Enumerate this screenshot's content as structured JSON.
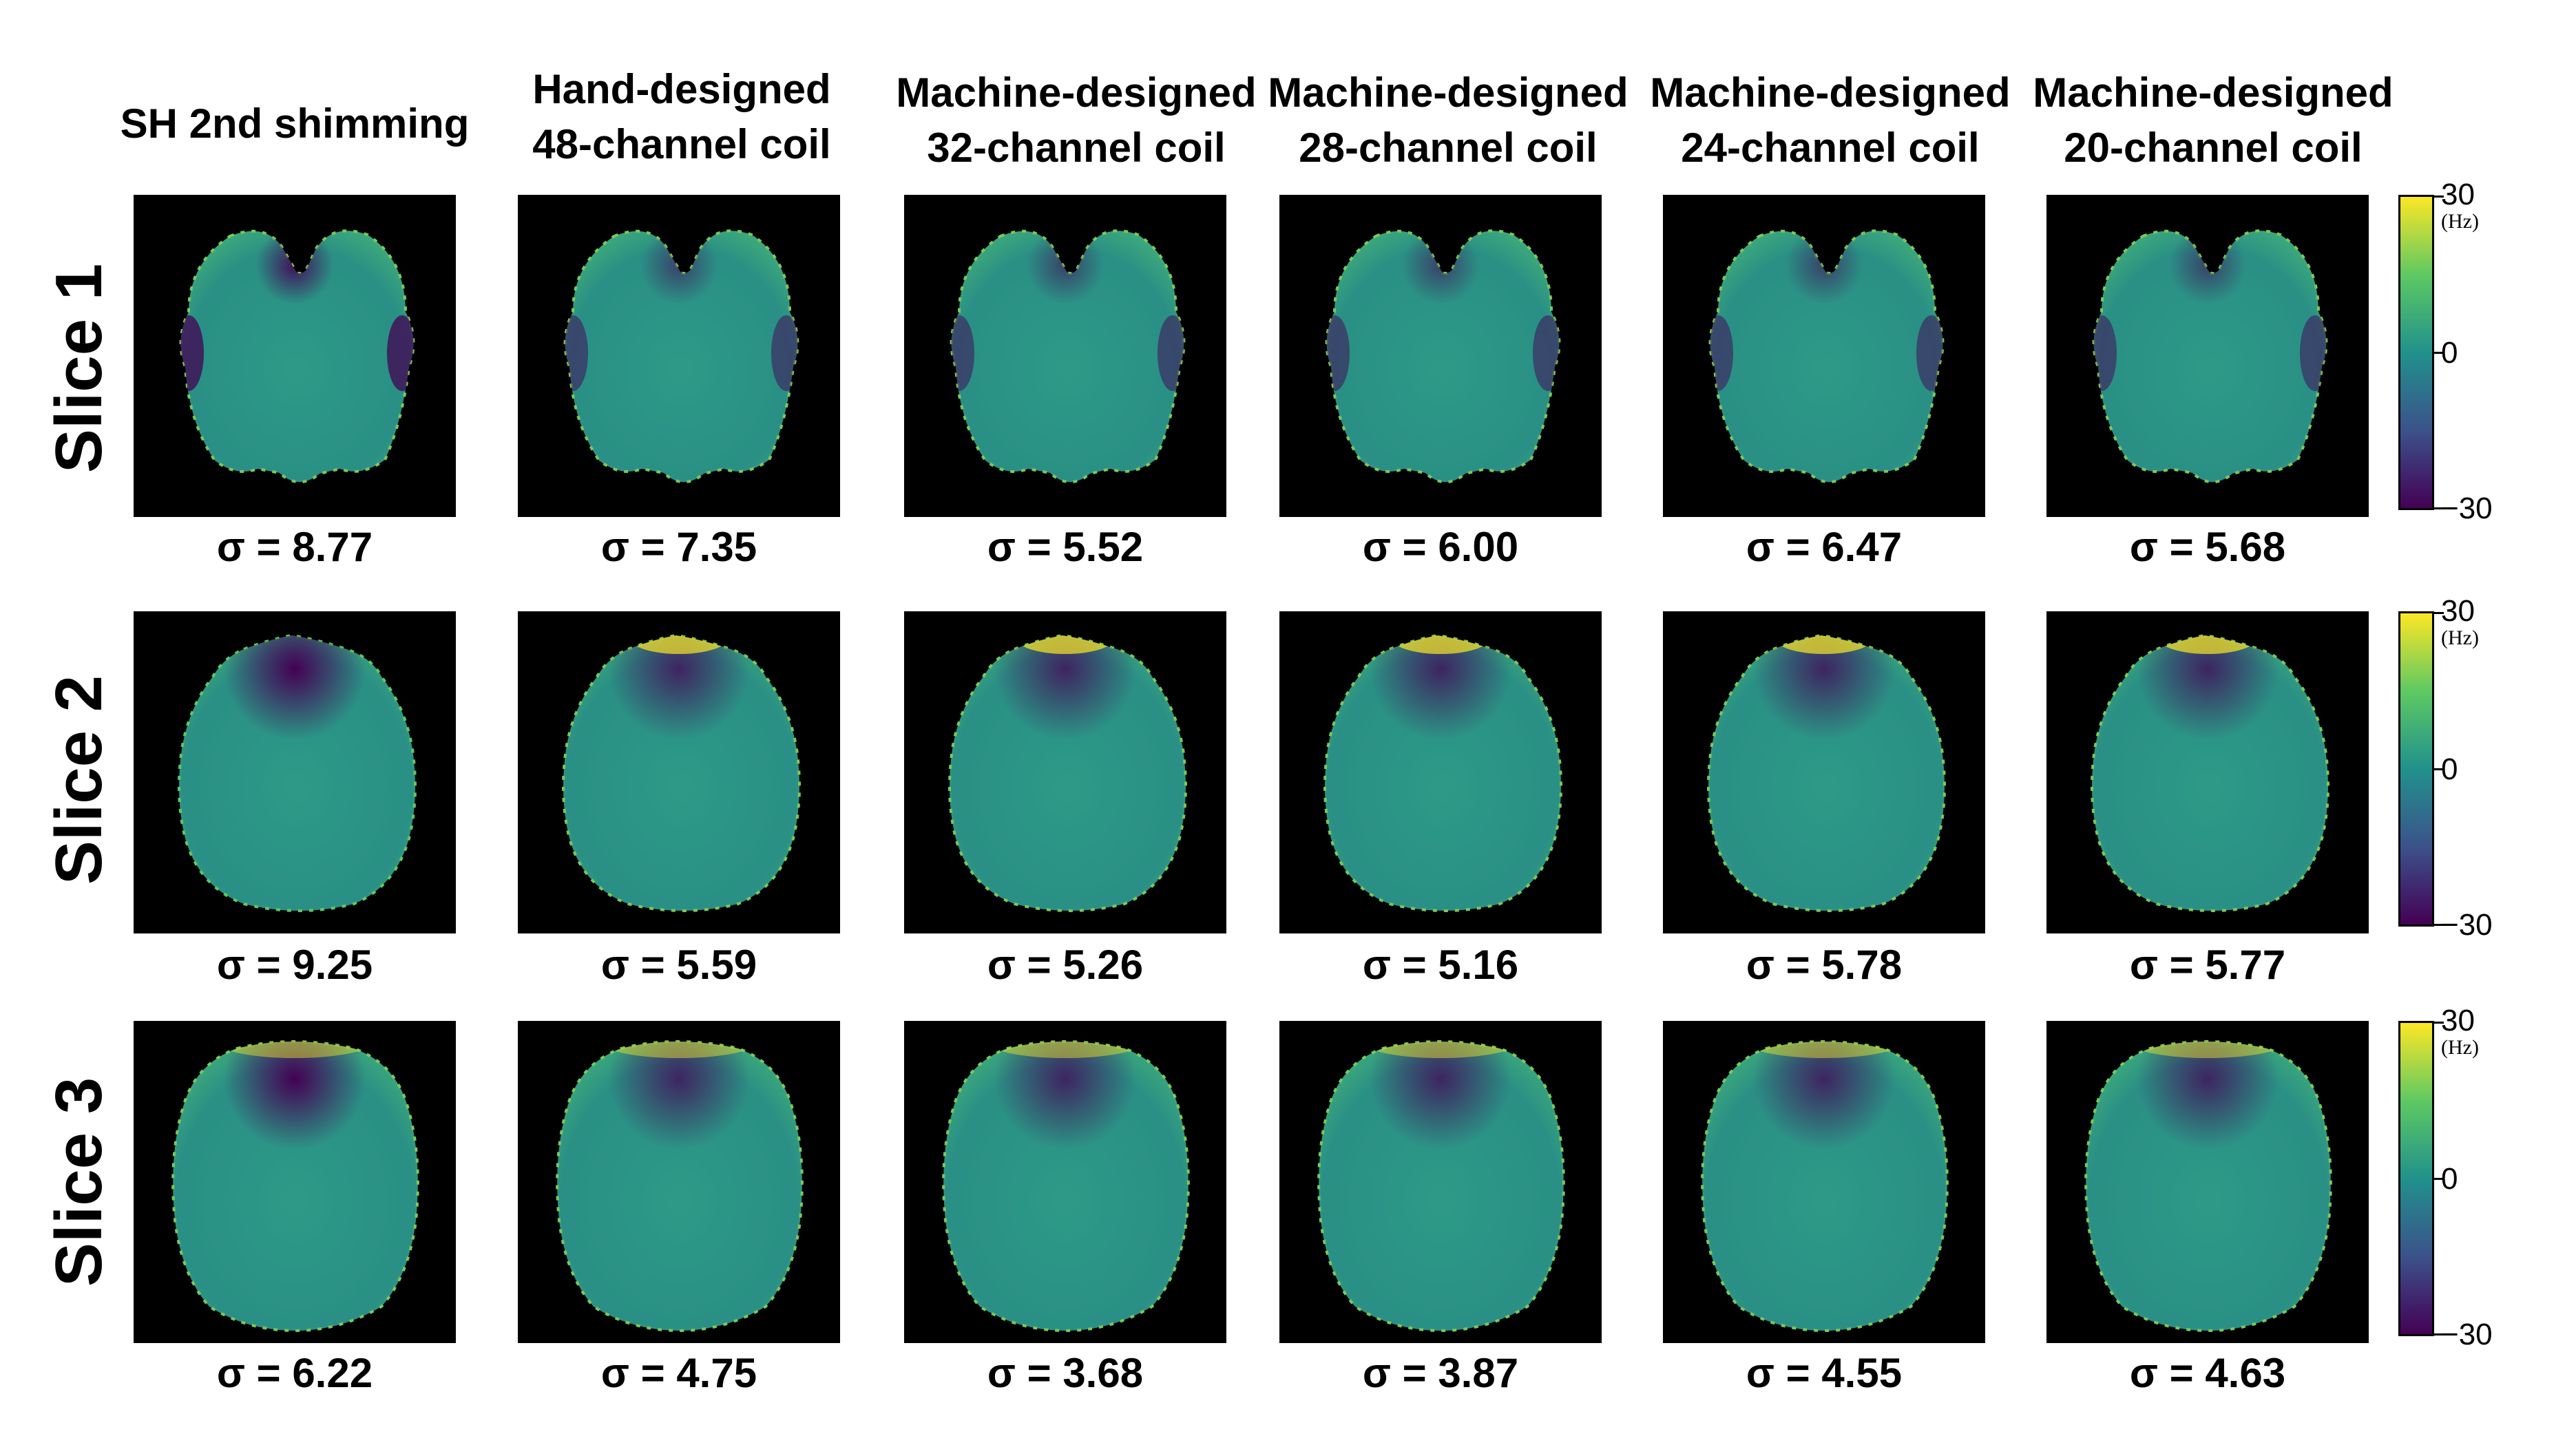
{
  "columns": [
    {
      "line1": "SH 2nd shimming",
      "line2": ""
    },
    {
      "line1": "Hand-designed",
      "line2": "48-channel coil"
    },
    {
      "line1": "Machine-designed",
      "line2": "32-channel coil"
    },
    {
      "line1": "Machine-designed",
      "line2": "28-channel coil"
    },
    {
      "line1": "Machine-designed",
      "line2": "24-channel coil"
    },
    {
      "line1": "Machine-designed",
      "line2": "20-channel coil"
    }
  ],
  "rows": [
    {
      "label": "Slice 1",
      "sigmas": [
        "σ = 8.77",
        "σ = 7.35",
        "σ = 5.52",
        "σ = 6.00",
        "σ = 6.47",
        "σ = 5.68"
      ]
    },
    {
      "label": "Slice 2",
      "sigmas": [
        "σ = 9.25",
        "σ = 5.59",
        "σ = 5.26",
        "σ = 5.16",
        "σ = 5.78",
        "σ = 5.77"
      ]
    },
    {
      "label": "Slice 3",
      "sigmas": [
        "σ = 6.22",
        "σ = 4.75",
        "σ = 3.68",
        "σ = 3.87",
        "σ = 4.55",
        "σ = 4.63"
      ]
    }
  ],
  "colorbar": {
    "max": "30",
    "mid": "0",
    "min": "−30",
    "unit": "(Hz)"
  },
  "colors": {
    "viridis_yellow": "#fde725",
    "viridis_green": "#5ec962",
    "viridis_teal": "#21918c",
    "viridis_blue": "#3b528b",
    "viridis_purple": "#440154",
    "brain_base": "#2a8f85"
  }
}
